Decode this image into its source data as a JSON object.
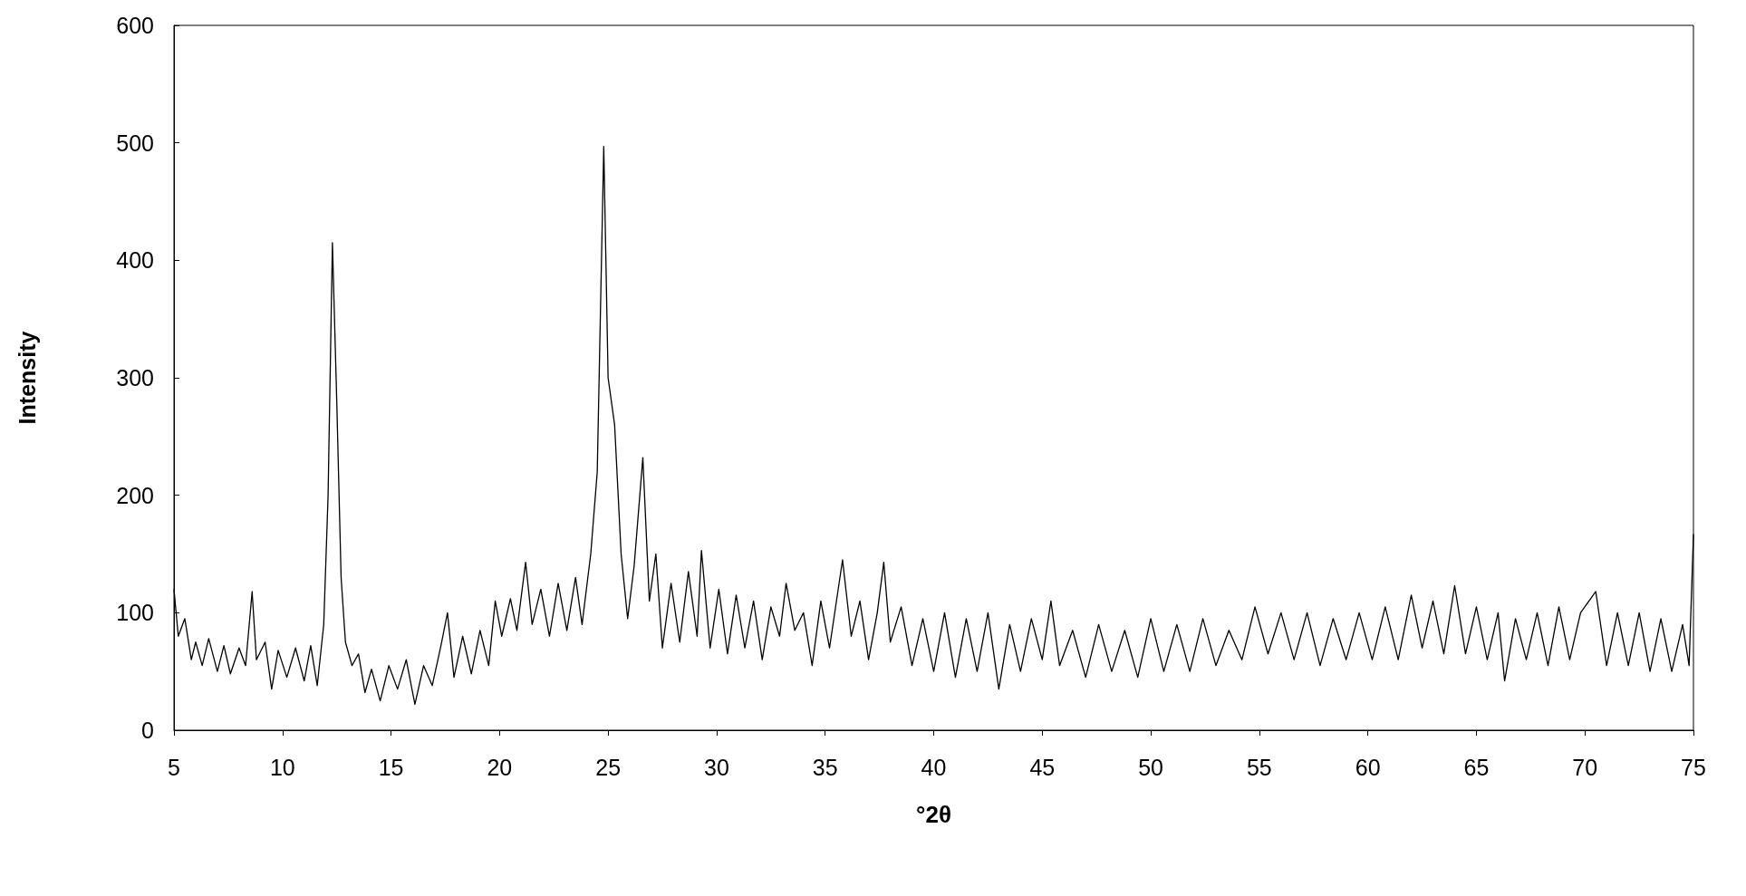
{
  "chart_data": {
    "type": "line",
    "xlabel": "°2θ",
    "ylabel": "Intensity",
    "xlim": [
      5,
      75
    ],
    "xticks": [
      5,
      10,
      15,
      20,
      25,
      30,
      35,
      40,
      45,
      50,
      55,
      60,
      65,
      70,
      75
    ],
    "ylim": [
      0,
      600
    ],
    "yticks": [
      0,
      100,
      200,
      300,
      400,
      500,
      600
    ],
    "grid": false,
    "marker": "none",
    "line_style": "solid",
    "series": [
      {
        "color": "#000000",
        "x": [
          5,
          5.2,
          5.5,
          5.8,
          6,
          6.3,
          6.6,
          7,
          7.3,
          7.6,
          8,
          8.3,
          8.6,
          8.8,
          9.2,
          9.5,
          9.8,
          10.2,
          10.6,
          11,
          11.3,
          11.6,
          11.9,
          12.1,
          12.3,
          12.5,
          12.7,
          12.9,
          13.2,
          13.5,
          13.8,
          14.1,
          14.5,
          14.9,
          15.3,
          15.7,
          16.1,
          16.5,
          16.9,
          17.3,
          17.6,
          17.9,
          18.3,
          18.7,
          19.1,
          19.5,
          19.8,
          20.1,
          20.5,
          20.8,
          21.2,
          21.5,
          21.9,
          22.3,
          22.7,
          23.1,
          23.5,
          23.8,
          24.2,
          24.5,
          24.8,
          25,
          25.3,
          25.6,
          25.9,
          26.2,
          26.6,
          26.9,
          27.2,
          27.5,
          27.9,
          28.3,
          28.7,
          29.1,
          29.3,
          29.7,
          30.1,
          30.5,
          30.9,
          31.3,
          31.7,
          32.1,
          32.5,
          32.9,
          33.2,
          33.6,
          34,
          34.4,
          34.8,
          35.2,
          35.8,
          36.2,
          36.6,
          37,
          37.4,
          37.7,
          38,
          38.5,
          39,
          39.5,
          40,
          40.5,
          41,
          41.5,
          42,
          42.5,
          43,
          43.5,
          44,
          44.5,
          45,
          45.4,
          45.8,
          46.4,
          47,
          47.6,
          48.2,
          48.8,
          49.4,
          50,
          50.6,
          51.2,
          51.8,
          52.4,
          53,
          53.6,
          54.2,
          54.8,
          55.4,
          56,
          56.6,
          57.2,
          57.8,
          58.4,
          59,
          59.6,
          60.2,
          60.8,
          61.4,
          62,
          62.5,
          63,
          63.5,
          64,
          64.5,
          65,
          65.5,
          66,
          66.3,
          66.8,
          67.3,
          67.8,
          68.3,
          68.8,
          69.3,
          69.8,
          70.5,
          71,
          71.5,
          72,
          72.5,
          73,
          73.5,
          74,
          74.5,
          74.8,
          75
        ],
        "values": [
          120,
          80,
          95,
          60,
          75,
          55,
          78,
          50,
          72,
          48,
          70,
          55,
          118,
          60,
          75,
          35,
          68,
          45,
          70,
          42,
          72,
          38,
          90,
          200,
          415,
          280,
          130,
          75,
          55,
          65,
          32,
          52,
          25,
          55,
          35,
          60,
          22,
          55,
          38,
          72,
          100,
          45,
          80,
          48,
          85,
          55,
          110,
          80,
          112,
          85,
          143,
          90,
          120,
          80,
          125,
          85,
          130,
          90,
          150,
          220,
          497,
          300,
          260,
          150,
          95,
          140,
          232,
          110,
          150,
          70,
          125,
          75,
          135,
          80,
          153,
          70,
          120,
          65,
          115,
          70,
          110,
          60,
          105,
          80,
          125,
          85,
          100,
          55,
          110,
          70,
          145,
          80,
          110,
          60,
          100,
          143,
          75,
          105,
          55,
          95,
          50,
          100,
          45,
          95,
          50,
          100,
          35,
          90,
          50,
          95,
          60,
          110,
          55,
          85,
          45,
          90,
          50,
          85,
          45,
          95,
          50,
          90,
          50,
          95,
          55,
          85,
          60,
          105,
          65,
          100,
          60,
          100,
          55,
          95,
          60,
          100,
          60,
          105,
          60,
          115,
          70,
          110,
          65,
          123,
          65,
          105,
          60,
          100,
          42,
          95,
          60,
          100,
          55,
          105,
          60,
          100,
          118,
          55,
          100,
          55,
          100,
          50,
          95,
          50,
          90,
          55,
          167
        ]
      }
    ]
  }
}
